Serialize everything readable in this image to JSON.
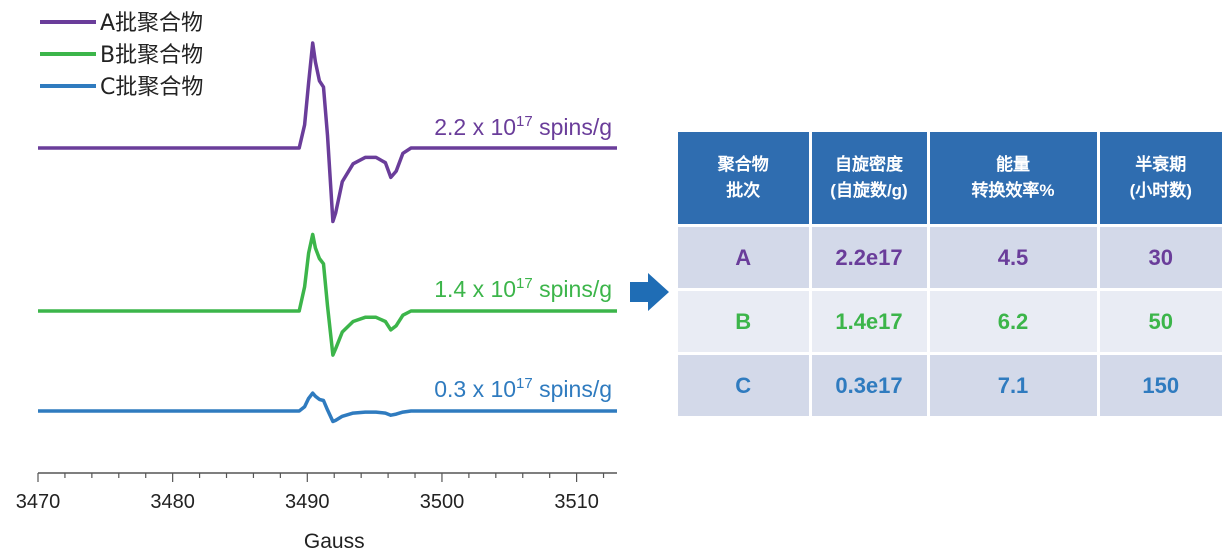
{
  "chart_data": {
    "type": "line",
    "xlabel": "Gauss",
    "xlim": [
      3470,
      3513
    ],
    "x_ticks": [
      3470,
      3480,
      3490,
      3500,
      3510
    ],
    "tick_labels": [
      "3470",
      "3480",
      "3490",
      "3500",
      "3510"
    ],
    "legend_position": "top-left",
    "grid": false,
    "series": [
      {
        "name": "A批聚合物",
        "color": "#6a3d9a",
        "annotation": {
          "base": "2.2 x 10",
          "exp": "17",
          "unit": " spins/g"
        },
        "points": [
          [
            3470,
            0
          ],
          [
            3489.4,
            0
          ],
          [
            3489.8,
            0.22
          ],
          [
            3490.1,
            0.62
          ],
          [
            3490.4,
            1.0
          ],
          [
            3490.6,
            0.82
          ],
          [
            3490.9,
            0.64
          ],
          [
            3491.2,
            0.58
          ],
          [
            3491.5,
            0.12
          ],
          [
            3491.9,
            -0.7
          ],
          [
            3492.1,
            -0.62
          ],
          [
            3492.6,
            -0.32
          ],
          [
            3493.4,
            -0.15
          ],
          [
            3494.3,
            -0.09
          ],
          [
            3495.1,
            -0.09
          ],
          [
            3495.8,
            -0.14
          ],
          [
            3496.2,
            -0.28
          ],
          [
            3496.6,
            -0.22
          ],
          [
            3497.1,
            -0.05
          ],
          [
            3497.7,
            0
          ],
          [
            3513,
            0
          ]
        ]
      },
      {
        "name": "B批聚合物",
        "color": "#3cb54a",
        "annotation": {
          "base": "1.4 x 10",
          "exp": "17",
          "unit": " spins/g"
        },
        "points": [
          [
            3470,
            0
          ],
          [
            3489.4,
            0
          ],
          [
            3489.8,
            0.23
          ],
          [
            3490.1,
            0.55
          ],
          [
            3490.4,
            0.73
          ],
          [
            3490.6,
            0.6
          ],
          [
            3490.9,
            0.5
          ],
          [
            3491.2,
            0.45
          ],
          [
            3491.5,
            0.05
          ],
          [
            3491.9,
            -0.42
          ],
          [
            3492.1,
            -0.36
          ],
          [
            3492.6,
            -0.2
          ],
          [
            3493.4,
            -0.1
          ],
          [
            3494.3,
            -0.06
          ],
          [
            3495.1,
            -0.06
          ],
          [
            3495.8,
            -0.1
          ],
          [
            3496.2,
            -0.18
          ],
          [
            3496.6,
            -0.14
          ],
          [
            3497.1,
            -0.04
          ],
          [
            3497.7,
            0
          ],
          [
            3513,
            0
          ]
        ]
      },
      {
        "name": "C批聚合物",
        "color": "#2f7bbf",
        "annotation": {
          "base": "0.3 x 10",
          "exp": "17",
          "unit": " spins/g"
        },
        "points": [
          [
            3470,
            0
          ],
          [
            3489.4,
            0
          ],
          [
            3489.8,
            0.04
          ],
          [
            3490.1,
            0.12
          ],
          [
            3490.4,
            0.17
          ],
          [
            3490.6,
            0.14
          ],
          [
            3490.9,
            0.11
          ],
          [
            3491.2,
            0.1
          ],
          [
            3491.5,
            0.01
          ],
          [
            3491.9,
            -0.1
          ],
          [
            3492.1,
            -0.09
          ],
          [
            3492.6,
            -0.05
          ],
          [
            3493.4,
            -0.02
          ],
          [
            3494.3,
            -0.01
          ],
          [
            3495.1,
            -0.01
          ],
          [
            3495.8,
            -0.02
          ],
          [
            3496.2,
            -0.04
          ],
          [
            3496.6,
            -0.03
          ],
          [
            3497.1,
            -0.01
          ],
          [
            3497.7,
            0
          ],
          [
            3513,
            0
          ]
        ]
      }
    ],
    "table": {
      "headers": [
        [
          "聚合物",
          "批次"
        ],
        [
          "自旋密度",
          "(自旋数/g)"
        ],
        [
          "能量",
          "转换效率%"
        ],
        [
          "半衰期",
          "(小时数)"
        ]
      ],
      "rows": [
        {
          "color": "#6a3d9a",
          "cells": [
            "A",
            "2.2e17",
            "4.5",
            "30"
          ]
        },
        {
          "color": "#3cb54a",
          "cells": [
            "B",
            "1.4e17",
            "6.2",
            "50"
          ]
        },
        {
          "color": "#2f7bbf",
          "cells": [
            "C",
            "0.3e17",
            "7.1",
            "150"
          ]
        }
      ]
    }
  },
  "arrow": {
    "icon": "right-arrow-icon",
    "color": "#1f6db5"
  }
}
